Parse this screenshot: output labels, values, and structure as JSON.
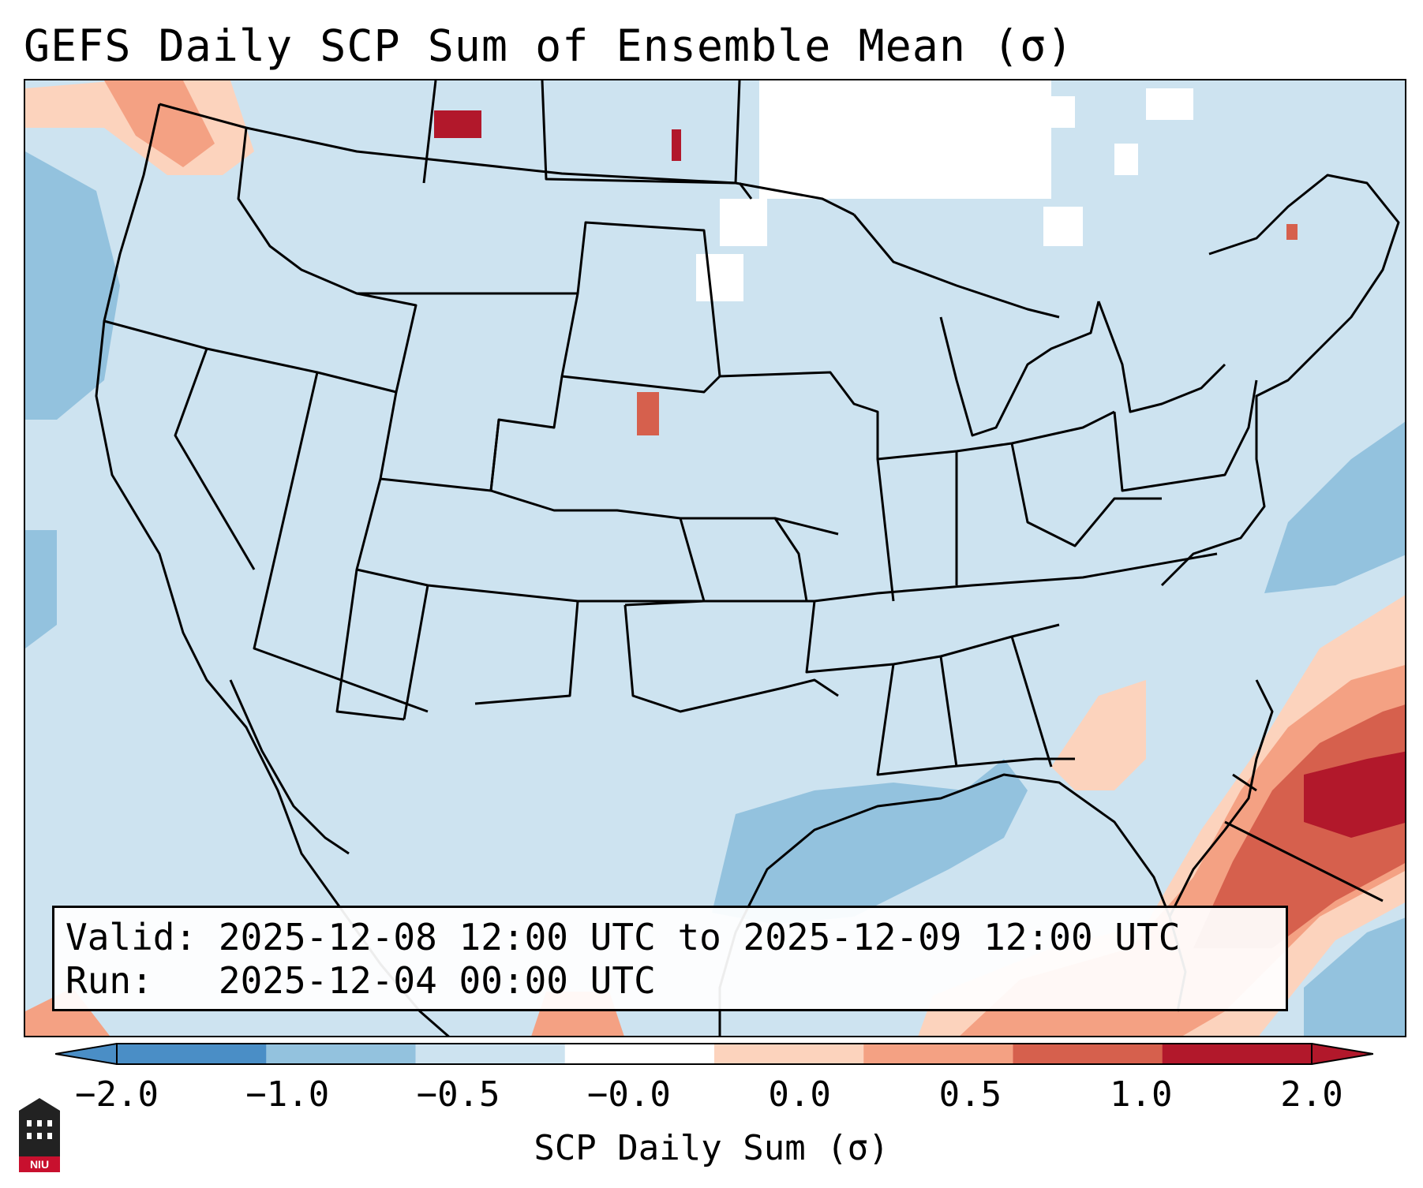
{
  "title": "GEFS Daily SCP Sum of Ensemble Mean (σ)",
  "info": {
    "valid_label": "Valid:",
    "valid_value": "2025-12-08 12:00 UTC to 2025-12-09 12:00 UTC",
    "run_label": "Run:",
    "run_value": "2025-12-04 00:00 UTC"
  },
  "colorbar": {
    "label": "SCP Daily Sum (σ)",
    "ticks": [
      "−2.0",
      "−1.0",
      "−0.5",
      "−0.0",
      "0.0",
      "0.5",
      "1.0",
      "2.0"
    ],
    "colors": [
      "#4a8ec6",
      "#93c2de",
      "#cde3f0",
      "#ffffff",
      "#fcd3bd",
      "#f4a183",
      "#d6604d",
      "#b2182b"
    ]
  },
  "logo": {
    "text": "NIU"
  },
  "map": {
    "background_category": "-0.5 to 0.0",
    "regions": [
      {
        "name": "Pacific negative anomaly",
        "category": "-1.0 to -0.5"
      },
      {
        "name": "Gulf of Mexico negative anomaly",
        "category": "-1.0 to -0.5"
      },
      {
        "name": "Western Atlantic negative anomaly",
        "category": "-1.0 to -0.5"
      },
      {
        "name": "Pacific Northwest positive anomaly",
        "category": "0.5 to 2.0"
      },
      {
        "name": "Southeast US and Florida positive anomaly",
        "category": "0.0 to 1.0"
      },
      {
        "name": "Western Atlantic strong positive anomaly",
        "category": "1.0 to 2.0+"
      },
      {
        "name": "Southern Canada near-zero area",
        "category": "-0.0 to 0.0"
      }
    ]
  }
}
